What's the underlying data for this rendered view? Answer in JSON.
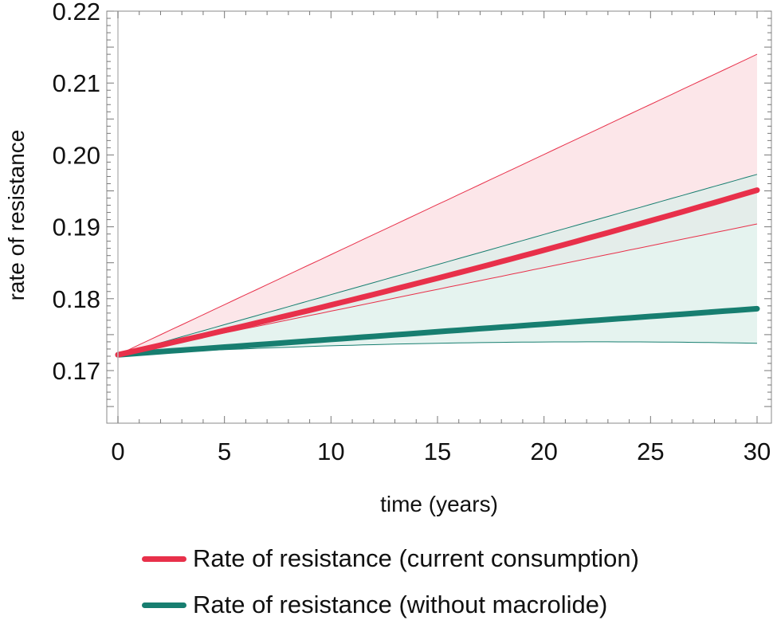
{
  "chart_data": {
    "type": "line",
    "title": "",
    "xlabel": "time (years)",
    "ylabel": "rate of resistance",
    "xlim": [
      0,
      30
    ],
    "ylim": [
      0.165,
      0.22
    ],
    "x_ticks": [
      0,
      5,
      10,
      15,
      20,
      25,
      30
    ],
    "y_ticks": [
      0.17,
      0.18,
      0.19,
      0.2,
      0.21,
      0.22
    ],
    "y_tick_labels": [
      "0.17",
      "0.18",
      "0.19",
      "0.20",
      "0.21",
      "0.22"
    ],
    "grid": false,
    "legend_position": "bottom",
    "x": [
      0,
      30
    ],
    "series": [
      {
        "name": "Rate of resistance (current consumption)",
        "color": "#e8304a",
        "band_color": "#fbdde1",
        "values": [
          0.1722,
          0.1951
        ],
        "lower": [
          0.1722,
          0.1904
        ],
        "upper": [
          0.1722,
          0.214
        ],
        "curvature": -0.0008
      },
      {
        "name": "Rate of resistance (without macrolide)",
        "color": "#177e70",
        "band_color": "#dcefe9",
        "values": [
          0.1722,
          0.1786
        ],
        "lower": [
          0.1722,
          0.1738
        ],
        "upper": [
          0.1722,
          0.1973
        ],
        "lower_curvature": 0.0008
      }
    ]
  }
}
